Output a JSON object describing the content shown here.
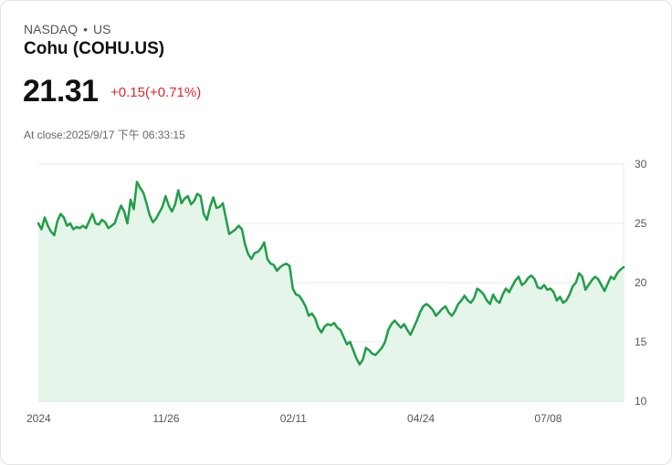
{
  "header": {
    "exchange": "NASDAQ",
    "separator": "•",
    "region": "US",
    "title": "Cohu (COHU.US)",
    "price": "21.31",
    "change": "+0.15(+0.71%)",
    "close_time": "At close:2025/9/17 下午 06:33:15"
  },
  "colors": {
    "line": "#1f9e48",
    "fill": "#e6f5ea",
    "change": "#e0282e"
  },
  "chart_data": {
    "type": "line",
    "title": "Cohu (COHU.US)",
    "xlabel": "",
    "ylabel": "",
    "ylim": [
      10,
      30
    ],
    "yticks": [
      10,
      15,
      20,
      25,
      30
    ],
    "ytick_labels": [
      "10",
      "15",
      "20",
      "25",
      "30"
    ],
    "xtick_labels": [
      {
        "label": "2024",
        "index": 0
      },
      {
        "label": "11/26",
        "index": 40
      },
      {
        "label": "02/11",
        "index": 80
      },
      {
        "label": "04/24",
        "index": 120
      },
      {
        "label": "07/08",
        "index": 160
      }
    ],
    "grid": true,
    "series": [
      {
        "name": "COHU.US",
        "values": [
          25.0,
          24.5,
          25.5,
          24.8,
          24.3,
          24.0,
          25.2,
          25.8,
          25.5,
          24.8,
          25.0,
          24.5,
          24.7,
          24.6,
          24.8,
          24.6,
          25.2,
          25.8,
          25.0,
          24.9,
          25.3,
          25.1,
          24.6,
          24.8,
          25.0,
          25.8,
          26.5,
          26.0,
          25.0,
          27.0,
          26.2,
          28.5,
          28.0,
          27.6,
          26.7,
          25.7,
          25.1,
          25.4,
          25.9,
          26.4,
          27.3,
          26.5,
          26.0,
          26.6,
          27.8,
          26.7,
          27.1,
          27.3,
          26.6,
          26.9,
          27.5,
          27.3,
          25.8,
          25.3,
          26.4,
          27.2,
          26.3,
          26.4,
          26.7,
          25.4,
          24.1,
          24.3,
          24.5,
          24.8,
          24.5,
          23.2,
          22.4,
          22.0,
          22.5,
          22.6,
          22.9,
          23.4,
          22.0,
          21.6,
          21.5,
          21.0,
          21.3,
          21.5,
          21.6,
          21.4,
          19.5,
          19.0,
          18.9,
          18.5,
          18.0,
          17.2,
          17.4,
          17.0,
          16.2,
          15.8,
          16.3,
          16.5,
          16.4,
          16.6,
          16.2,
          16.0,
          15.4,
          14.8,
          15.0,
          14.3,
          13.6,
          13.1,
          13.5,
          14.5,
          14.3,
          14.0,
          13.9,
          14.2,
          14.5,
          15.0,
          16.0,
          16.5,
          16.8,
          16.5,
          16.2,
          16.5,
          16.0,
          15.6,
          16.2,
          16.8,
          17.5,
          18.0,
          18.2,
          18.0,
          17.7,
          17.2,
          17.5,
          17.8,
          18.0,
          17.5,
          17.2,
          17.6,
          18.2,
          18.5,
          18.9,
          18.5,
          18.3,
          18.7,
          19.5,
          19.3,
          19.0,
          18.5,
          18.2,
          19.0,
          18.5,
          18.3,
          19.0,
          19.5,
          19.2,
          19.7,
          20.2,
          20.5,
          19.8,
          20.0,
          20.4,
          20.6,
          20.3,
          19.6,
          19.5,
          19.8,
          19.4,
          19.5,
          19.2,
          18.5,
          18.8,
          18.3,
          18.5,
          19.0,
          19.7,
          20.0,
          20.8,
          20.5,
          19.4,
          19.8,
          20.2,
          20.5,
          20.3,
          19.8,
          19.3,
          19.9,
          20.5,
          20.3,
          20.8,
          21.1,
          21.31
        ]
      }
    ]
  }
}
